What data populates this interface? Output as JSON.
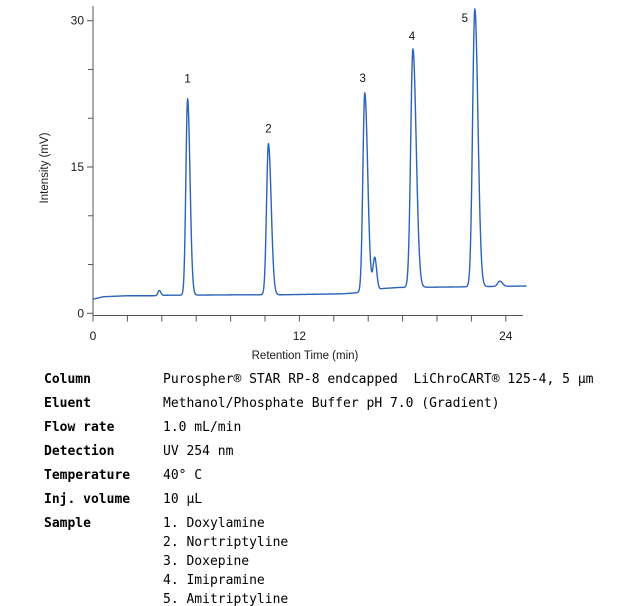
{
  "chart_data": {
    "type": "line",
    "subtype": "chromatogram",
    "title": "",
    "xlabel": "Retention Time (min)",
    "ylabel": "Intensity (mV)",
    "xlim": [
      0,
      25.2
    ],
    "ylim": [
      0,
      31.5
    ],
    "x_axis": {
      "major_ticks": [
        0,
        12,
        24
      ],
      "minor_tick_step": 2,
      "last_tick": 24
    },
    "y_axis": {
      "major_ticks": [
        0,
        15,
        30
      ],
      "minor_tick_step": 5,
      "last_tick": 30
    },
    "grid": false,
    "legend": "none",
    "line_color": "#2a63b8",
    "axis_color": "#555555",
    "text_color": "#1a1a1a",
    "peaks": [
      {
        "label": "1",
        "compound": "Doxylamine",
        "rt_min": 5.5,
        "height_mV": 22.0,
        "sigma_left": 0.1,
        "sigma_right": 0.14,
        "label_dx": 0,
        "label_dy": -20
      },
      {
        "label": "2",
        "compound": "Nortriptyline",
        "rt_min": 10.2,
        "height_mV": 17.4,
        "sigma_left": 0.11,
        "sigma_right": 0.16,
        "label_dx": 0,
        "label_dy": -15
      },
      {
        "label": "3",
        "compound": "Doxepine",
        "rt_min": 15.8,
        "height_mV": 22.6,
        "sigma_left": 0.11,
        "sigma_right": 0.17,
        "label_dx": -2,
        "label_dy": -15
      },
      {
        "label": "4",
        "compound": "Imipramine",
        "rt_min": 18.6,
        "height_mV": 27.1,
        "sigma_left": 0.13,
        "sigma_right": 0.19,
        "label_dx": -1,
        "label_dy": -13
      },
      {
        "label": "5",
        "compound": "Amitriptyline",
        "rt_min": 22.2,
        "height_mV": 31.2,
        "sigma_left": 0.13,
        "sigma_right": 0.18,
        "label_dx": -10,
        "label_dy": 9
      }
    ],
    "minor_features": [
      {
        "name": "injection-disturbance",
        "rt_min": 3.85,
        "height_mV": 2.35,
        "sigma_left": 0.07,
        "sigma_right": 0.09
      },
      {
        "name": "shoulder-after-peak-3",
        "rt_min": 16.38,
        "height_mV": 5.7,
        "sigma_left": 0.1,
        "sigma_right": 0.11
      },
      {
        "name": "small-peak-after-peak-5",
        "rt_min": 23.65,
        "height_mV": 3.3,
        "sigma_left": 0.12,
        "sigma_right": 0.15
      }
    ],
    "baseline_mV": [
      [
        0,
        1.45
      ],
      [
        0.6,
        1.7
      ],
      [
        2.0,
        1.8
      ],
      [
        3.5,
        1.8
      ],
      [
        4.2,
        1.85
      ],
      [
        9.0,
        1.9
      ],
      [
        11.0,
        1.9
      ],
      [
        14.5,
        2.0
      ],
      [
        15.3,
        2.1
      ],
      [
        16.0,
        2.3
      ],
      [
        16.9,
        2.55
      ],
      [
        17.8,
        2.65
      ],
      [
        21.0,
        2.7
      ],
      [
        23.2,
        2.75
      ],
      [
        25.2,
        2.8
      ]
    ]
  },
  "conditions": {
    "rows": [
      {
        "label": "Column",
        "value": "Purospher® STAR RP-8 endcapped  LiChroCART® 125-4, 5 µm"
      },
      {
        "label": "Eluent",
        "value": "Methanol/Phosphate Buffer pH 7.0 (Gradient)"
      },
      {
        "label": "Flow rate",
        "value": "1.0 mL/min"
      },
      {
        "label": "Detection",
        "value": "UV 254 nm"
      },
      {
        "label": "Temperature",
        "value": "40° C"
      },
      {
        "label": "Inj. volume",
        "value": "10 µL"
      }
    ]
  },
  "sample": {
    "label": "Sample",
    "items": [
      "1. Doxylamine",
      "2. Nortriptyline",
      "3. Doxepine",
      "4. Imipramine",
      "5. Amitriptyline"
    ]
  }
}
